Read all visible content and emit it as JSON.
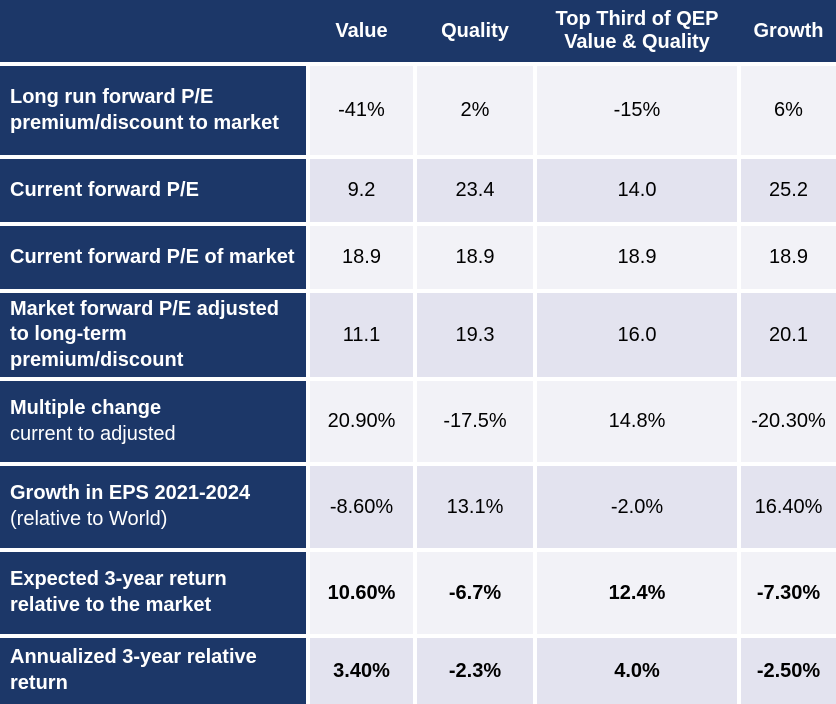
{
  "header": {
    "labels": [
      "Value",
      "Quality",
      "Top Third of QEP\nValue & Quality",
      "Growth"
    ]
  },
  "rows": [
    {
      "label": "Long run forward P/E premium/discount to market",
      "sublabel": "",
      "values": [
        "-41%",
        "2%",
        "-15%",
        "6%"
      ]
    },
    {
      "label": "Current forward P/E",
      "sublabel": "",
      "values": [
        "9.2",
        "23.4",
        "14.0",
        "25.2"
      ]
    },
    {
      "label": "Current forward P/E of market",
      "sublabel": "",
      "values": [
        "18.9",
        "18.9",
        "18.9",
        "18.9"
      ]
    },
    {
      "label": "Market forward P/E adjusted to long-term premium/discount",
      "sublabel": "",
      "values": [
        "11.1",
        "19.3",
        "16.0",
        "20.1"
      ]
    },
    {
      "label": "Multiple change",
      "sublabel": "current to adjusted",
      "values": [
        "20.90%",
        "-17.5%",
        "14.8%",
        "-20.30%"
      ]
    },
    {
      "label": "Growth in EPS 2021-2024",
      "sublabel": "(relative to World)",
      "values": [
        "-8.60%",
        "13.1%",
        "-2.0%",
        "16.40%"
      ]
    },
    {
      "label": "Expected 3-year return relative to the market",
      "sublabel": "",
      "values": [
        "10.60%",
        "-6.7%",
        "12.4%",
        "-7.30%"
      ]
    },
    {
      "label": "Annualized 3-year relative return",
      "sublabel": "",
      "values": [
        "3.40%",
        "-2.3%",
        "4.0%",
        "-2.50%"
      ]
    }
  ],
  "colors": {
    "navy": "#1C3768",
    "row_light": "#F2F2F7",
    "row_dark": "#E3E3EF",
    "gridline": "#FFFFFF",
    "header_text": "#FFFFFF",
    "value_text": "#000000"
  }
}
